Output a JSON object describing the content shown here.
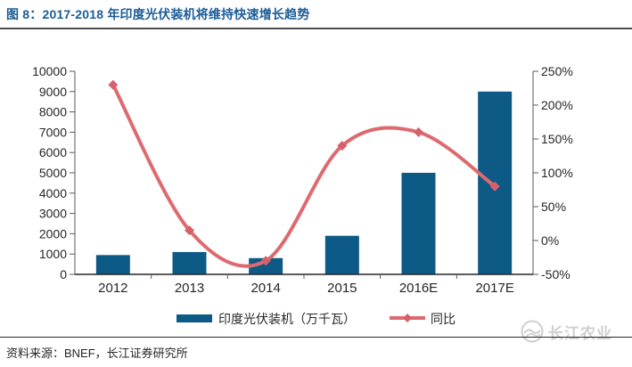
{
  "figure": {
    "title": "图 8：2017-2018 年印度光伏装机将维持快速增长趋势",
    "source": "资料来源：BNEF，长江证券研究所",
    "watermark": "长江农业"
  },
  "colors": {
    "title_blue": "#1b5c97",
    "bar_blue": "#0e5a86",
    "line_red": "#de6a70",
    "marker_red": "#d6616b",
    "axis_line": "#595959",
    "axis_text": "#262626",
    "watermark_gray": "#cfcfcf"
  },
  "chart_data": {
    "type": "combo-bar-line",
    "categories": [
      "2012",
      "2013",
      "2014",
      "2015",
      "2016E",
      "2017E"
    ],
    "series": [
      {
        "name": "印度光伏装机（万千瓦）",
        "type": "bar",
        "axis": "left",
        "values": [
          950,
          1100,
          800,
          1900,
          5000,
          9000
        ]
      },
      {
        "name": "同比",
        "type": "line",
        "axis": "right",
        "values_percent": [
          230,
          15,
          -30,
          140,
          160,
          80
        ]
      }
    ],
    "left_axis": {
      "min": 0,
      "max": 10000,
      "step": 1000,
      "tick_labels": [
        "0",
        "1000",
        "2000",
        "3000",
        "4000",
        "5000",
        "6000",
        "7000",
        "8000",
        "9000",
        "10000"
      ]
    },
    "right_axis": {
      "min": -50,
      "max": 250,
      "step": 50,
      "tick_labels": [
        "-50%",
        "0%",
        "50%",
        "100%",
        "150%",
        "200%",
        "250%"
      ]
    },
    "legend_position": "bottom",
    "grid": false
  }
}
